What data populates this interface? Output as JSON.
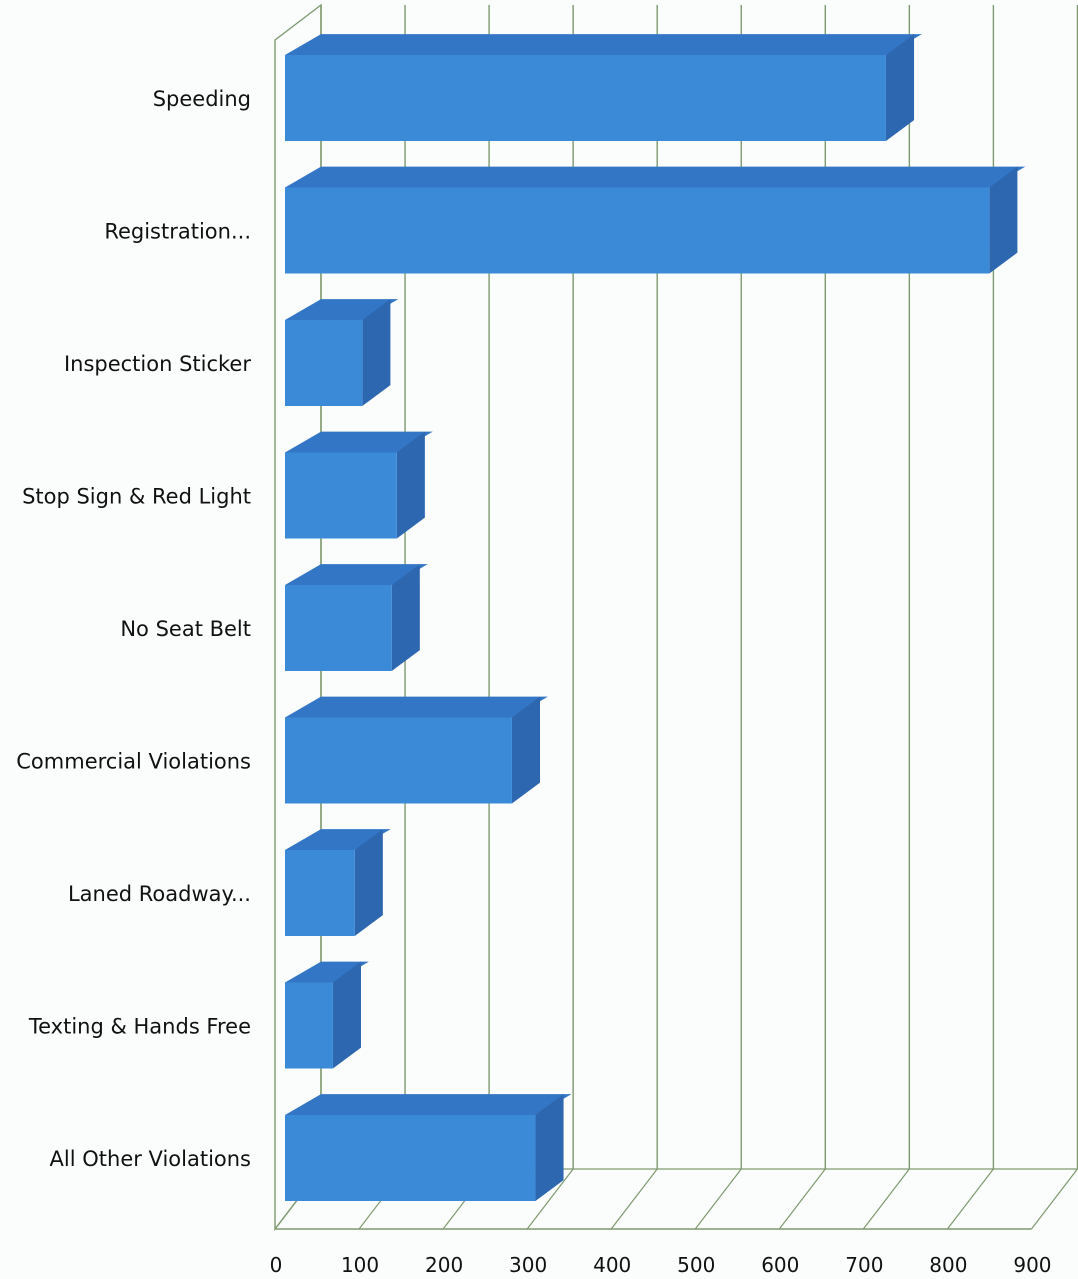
{
  "chart_data": {
    "type": "bar",
    "orientation": "horizontal",
    "style": "3d",
    "title": "",
    "xlabel": "",
    "ylabel": "",
    "categories": [
      "Speeding",
      "Registration...",
      "Inspection Sticker",
      "Stop Sign & Red Light",
      "No Seat Belt",
      "Commercial Violations",
      "Laned Roadway...",
      "Texting & Hands Free",
      "All Other Violations"
    ],
    "values": [
      715,
      838,
      92,
      133,
      127,
      270,
      83,
      57,
      298
    ],
    "xlim": [
      0,
      900
    ],
    "x_ticks": [
      "0",
      "100",
      "200",
      "300",
      "400",
      "500",
      "600",
      "700",
      "800",
      "900"
    ],
    "grid": true,
    "legend": "none",
    "colors": {
      "bar_front": "#3a8ad8",
      "bar_top": "#3376c6",
      "bar_side": "#2d67b0",
      "grid": "#7f9a6f",
      "background": "#fbfcfc"
    }
  }
}
